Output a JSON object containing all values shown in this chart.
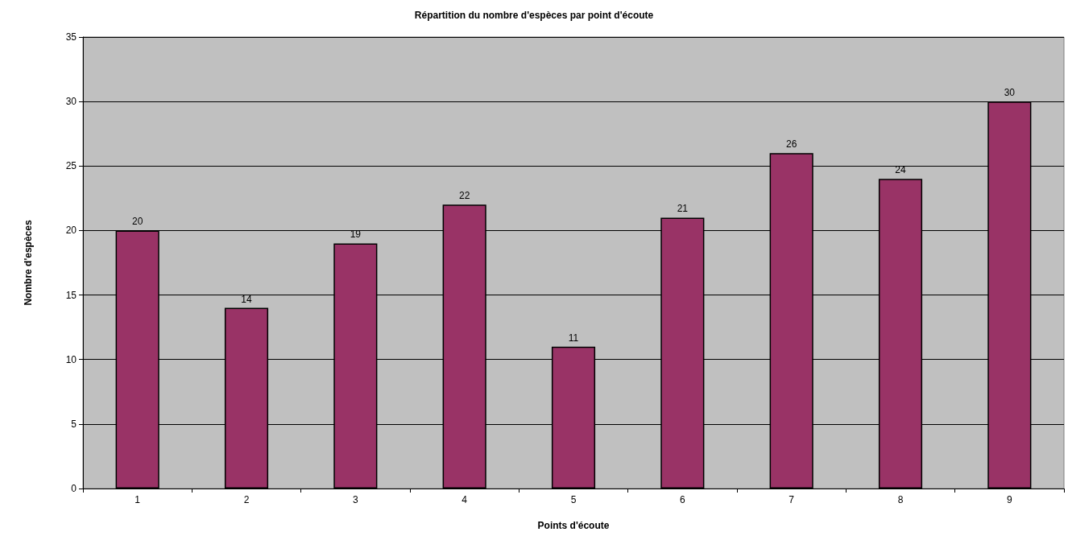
{
  "chart_data": {
    "type": "bar",
    "title": "Répartition du nombre d'espèces par point d'écoute",
    "xlabel": "Points d'écoute",
    "ylabel": "Nombre d'espèces",
    "categories": [
      "1",
      "2",
      "3",
      "4",
      "5",
      "6",
      "7",
      "8",
      "9"
    ],
    "values": [
      20,
      14,
      19,
      22,
      11,
      21,
      26,
      24,
      30
    ],
    "color": "#993366",
    "ylim": [
      0,
      35
    ],
    "yticks": [
      0,
      5,
      10,
      15,
      20,
      25,
      30,
      35
    ],
    "grid": "y",
    "data_labels": true
  }
}
